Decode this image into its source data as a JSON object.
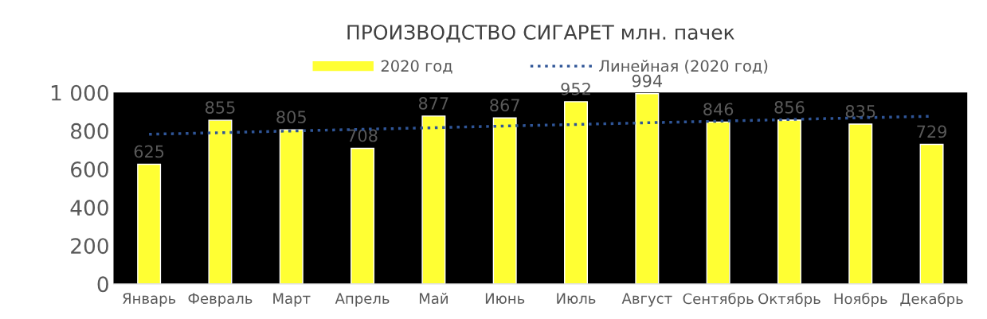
{
  "chart_data": {
    "type": "bar",
    "title": "ПРОИЗВОДСТВО СИГАРЕТ млн. пачек",
    "categories": [
      "Январь",
      "Февраль",
      "Март",
      "Апрель",
      "Май",
      "Июнь",
      "Июль",
      "Август",
      "Сентябрь",
      "Октябрь",
      "Ноябрь",
      "Декабрь"
    ],
    "series": [
      {
        "name": "2020 год",
        "color": "#ffff33",
        "values": [
          625,
          855,
          805,
          708,
          877,
          867,
          952,
          994,
          846,
          856,
          835,
          729
        ],
        "value_labels": [
          "625",
          "855",
          "805",
          "708",
          "877",
          "867",
          "952",
          "994",
          "846",
          "856",
          "835",
          "729"
        ]
      },
      {
        "name": "Линейная (2020 год)",
        "type": "line",
        "color": "#2f5597",
        "line_style": "dotted",
        "values": [
          782,
          790,
          799,
          808,
          816,
          825,
          833,
          842,
          850,
          859,
          868,
          876
        ]
      }
    ],
    "ylim": [
      0,
      1000
    ],
    "yticks": [
      0,
      200,
      400,
      600,
      800,
      {
        "value": 1000,
        "label": "1 000"
      }
    ],
    "grid": false,
    "legend": "top"
  }
}
